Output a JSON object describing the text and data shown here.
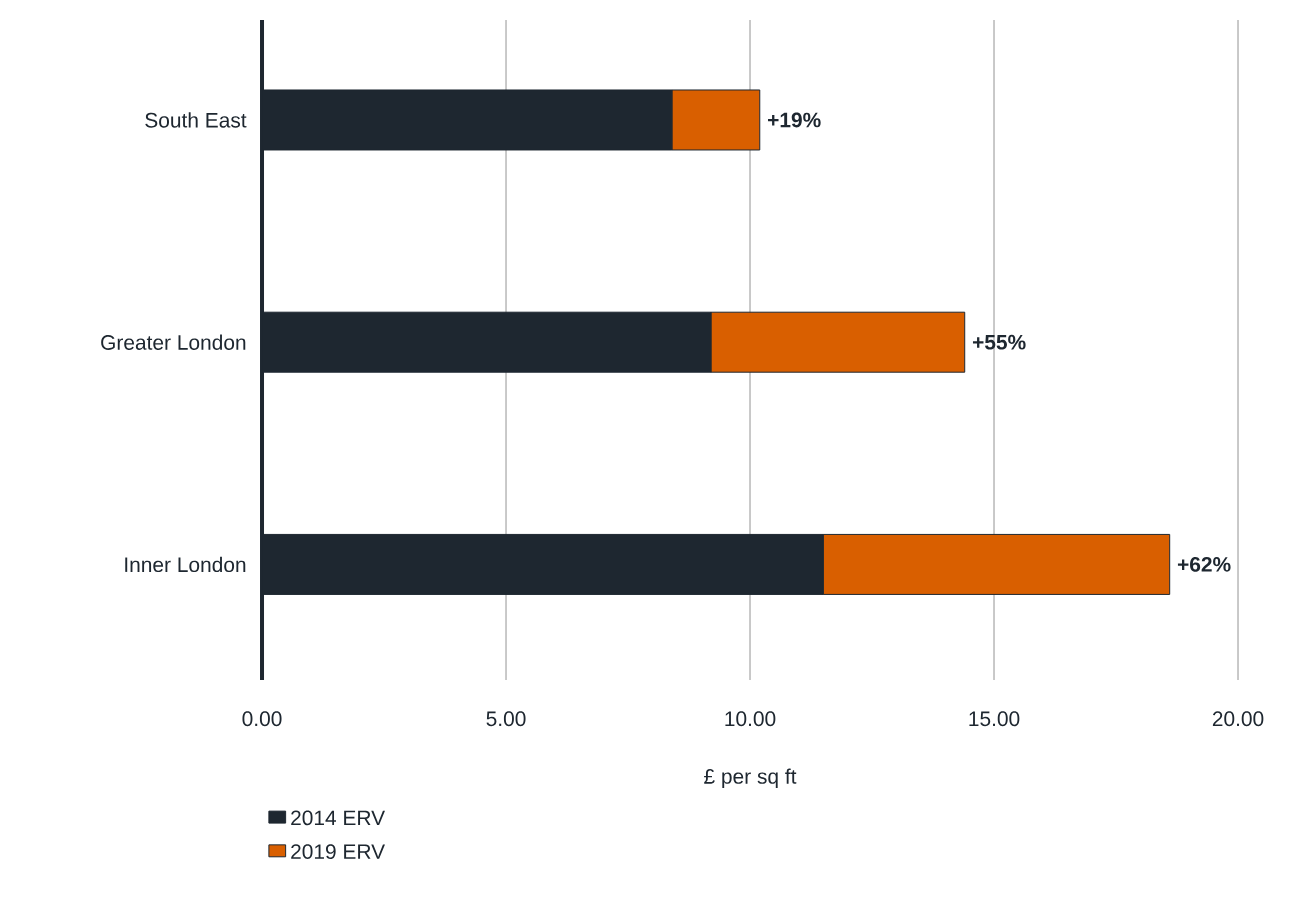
{
  "chart_data": {
    "type": "bar",
    "orientation": "horizontal",
    "stacked": true,
    "categories": [
      "South East",
      "Greater London",
      "Inner London"
    ],
    "series": [
      {
        "name": "2014 ERV",
        "color": "#1e2730",
        "values": [
          8.4,
          9.2,
          11.5
        ]
      },
      {
        "name": "2019 ERV",
        "color": "#d95f00",
        "values": [
          1.8,
          5.2,
          7.1
        ]
      }
    ],
    "xlabel": "£ per sq ft",
    "xlim": [
      0,
      20
    ],
    "xticks": [
      {
        "value": 0,
        "label": "0.00"
      },
      {
        "value": 5,
        "label": "5.00"
      },
      {
        "value": 10,
        "label": "10.00"
      },
      {
        "value": 15,
        "label": "15.00"
      },
      {
        "value": 20,
        "label": "20.00"
      }
    ],
    "grid": "x",
    "legend": "bottom left",
    "annotations": [
      {
        "text": "+19%",
        "x": 10.2,
        "y": "South East"
      },
      {
        "text": "+55%",
        "x": 14.4,
        "y": "Greater London"
      },
      {
        "text": "+62%",
        "x": 18.6,
        "y": "Inner London"
      }
    ]
  }
}
